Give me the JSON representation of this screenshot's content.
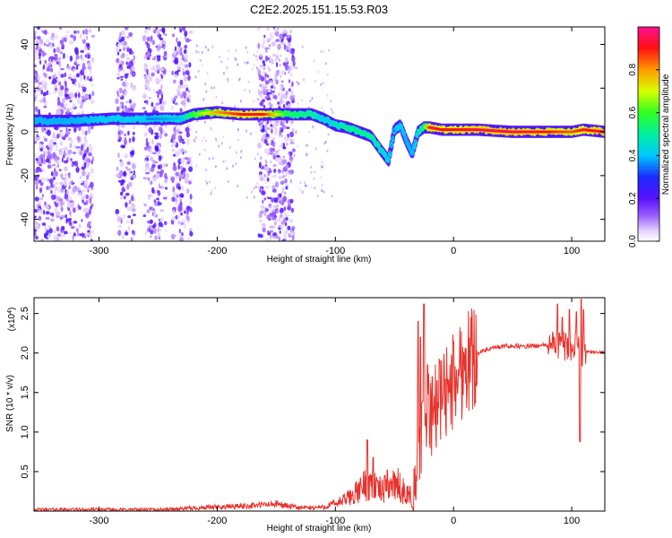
{
  "page": {
    "title": "C2E2.2025.151.15.53.R03"
  },
  "chart_data": [
    {
      "type": "heatmap",
      "title": "C2E2.2025.151.15.53.R03",
      "xlabel": "Height of straight line (km)",
      "ylabel": "Frequency (Hz)",
      "xlim": [
        -355,
        128
      ],
      "ylim": [
        -50,
        48
      ],
      "x_ticks": [
        -300,
        -200,
        -100,
        0,
        100
      ],
      "x_tick_labels": [
        "-300",
        "-200",
        "-100",
        "0",
        "100"
      ],
      "y_ticks": [
        -40,
        -20,
        0,
        20,
        40
      ],
      "y_tick_labels": [
        "-40",
        "-20",
        "0",
        "20",
        "40"
      ],
      "colorbar": {
        "label": "Normalized spectral amplitude",
        "range": [
          0,
          1
        ],
        "ticks": [
          0.0,
          0.2,
          0.4,
          0.6,
          0.8
        ],
        "tick_labels": [
          "0.0",
          "0.2",
          "0.4",
          "0.6",
          "0.8"
        ],
        "colormap": "rainbow (white-violet-blue-cyan-green-yellow-red-magenta)"
      },
      "ridge": {
        "x": [
          -355,
          -320,
          -290,
          -260,
          -230,
          -220,
          -200,
          -180,
          -160,
          -140,
          -120,
          -110,
          -100,
          -90,
          -80,
          -70,
          -62,
          -55,
          -50,
          -45,
          -40,
          -35,
          -30,
          -25,
          -20,
          -10,
          0,
          20,
          50,
          80,
          100,
          110,
          128
        ],
        "frequency": [
          5,
          5,
          6,
          6,
          6,
          8,
          9,
          8,
          8,
          8,
          8,
          6,
          3,
          2,
          0,
          -2,
          -8,
          -13,
          1,
          3,
          -4,
          -10,
          0,
          2,
          2,
          1,
          1,
          1,
          0,
          0,
          0,
          1,
          0
        ],
        "amplitude": [
          0.3,
          0.3,
          0.35,
          0.35,
          0.4,
          0.6,
          0.8,
          0.9,
          0.9,
          0.55,
          0.5,
          0.4,
          0.45,
          0.5,
          0.5,
          0.5,
          0.45,
          0.4,
          0.35,
          0.35,
          0.3,
          0.3,
          0.45,
          0.55,
          0.95,
          0.9,
          0.9,
          0.95,
          0.95,
          0.9,
          0.85,
          0.9,
          0.95
        ]
      },
      "noise_bands_x": [
        [
          -355,
          -305
        ],
        [
          -285,
          -270
        ],
        [
          -262,
          -243
        ],
        [
          -238,
          -222
        ],
        [
          -165,
          -135
        ]
      ],
      "grid": false
    },
    {
      "type": "line",
      "xlabel": "Height of straight line (km)",
      "ylabel": "SNR (10 * v/v)",
      "y_multiplier": "(x10",
      "y_multiplier_exp": "4",
      "y_multiplier_close": ")",
      "xlim": [
        -355,
        128
      ],
      "ylim": [
        0,
        2.7
      ],
      "x_ticks": [
        -300,
        -200,
        -100,
        0,
        100
      ],
      "x_tick_labels": [
        "-300",
        "-200",
        "-100",
        "0",
        "100"
      ],
      "y_ticks": [
        0.5,
        1.0,
        1.5,
        2.0,
        2.5
      ],
      "y_tick_labels": [
        "0.5",
        "1.0",
        "1.5",
        "2.0",
        "2.5"
      ],
      "series": [
        {
          "color": "#e8322c",
          "envelope": {
            "x": [
              -355,
              -250,
              -230,
              -200,
              -170,
              -150,
              -130,
              -110,
              -95,
              -85,
              -78,
              -75,
              -70,
              -65,
              -60,
              -55,
              -52,
              -48,
              -45,
              -40,
              -36,
              -32,
              -30,
              -28,
              -26,
              -22,
              -18,
              -14,
              -10,
              -5,
              0,
              10,
              20,
              30,
              40,
              50,
              60,
              70,
              80,
              85,
              90,
              95,
              100,
              103,
              106,
              108,
              112,
              115,
              120,
              128
            ],
            "y": [
              0.02,
              0.02,
              0.03,
              0.05,
              0.07,
              0.09,
              0.04,
              0.05,
              0.12,
              0.2,
              0.28,
              0.34,
              0.35,
              0.3,
              0.25,
              0.32,
              0.35,
              0.35,
              0.3,
              0.2,
              0.22,
              0.4,
              0.9,
              0.75,
              1.0,
              1.2,
              1.25,
              1.35,
              1.45,
              1.55,
              1.65,
              1.9,
              2.0,
              2.05,
              2.08,
              2.09,
              2.08,
              2.09,
              2.1,
              2.1,
              2.1,
              2.08,
              2.1,
              2.1,
              2.05,
              2.03,
              2.02,
              2.02,
              2.01,
              2.01
            ]
          },
          "peaks": [
            {
              "x": -73,
              "y": 0.9
            },
            {
              "x": -68,
              "y": 0.68
            },
            {
              "x": -56,
              "y": 0.52
            },
            {
              "x": -48,
              "y": 0.41
            },
            {
              "x": -30,
              "y": 2.4
            },
            {
              "x": -28,
              "y": 2.2
            },
            {
              "x": -25,
              "y": 2.62
            },
            {
              "x": -22,
              "y": 1.85
            },
            {
              "x": -18,
              "y": 1.7
            },
            {
              "x": -14,
              "y": 1.65
            },
            {
              "x": 88,
              "y": 2.62
            },
            {
              "x": 92,
              "y": 2.45
            },
            {
              "x": 98,
              "y": 2.55
            },
            {
              "x": 104,
              "y": 2.52
            },
            {
              "x": 108,
              "y": 2.68
            },
            {
              "x": 110,
              "y": 2.55
            }
          ],
          "dips": [
            {
              "x": -35,
              "y": 0.05
            },
            {
              "x": 107,
              "y": 0.88
            }
          ]
        }
      ],
      "grid": false
    }
  ]
}
